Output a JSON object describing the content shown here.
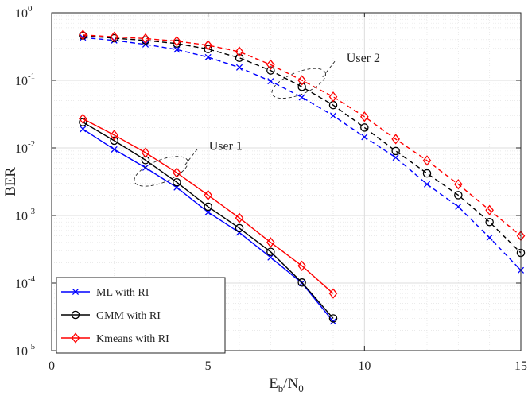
{
  "chart_data": {
    "type": "line",
    "title": "",
    "xlabel": {
      "main": "E",
      "sub1": "b",
      "mid": "/N",
      "sub2": "0"
    },
    "ylabel": "BER",
    "xlim": [
      0,
      15
    ],
    "ylim": [
      1e-05,
      1
    ],
    "yscale": "log",
    "grid": true,
    "minor_grid": true,
    "x_ticks": [
      0,
      5,
      10,
      15
    ],
    "x_tick_labels": [
      "0",
      "5",
      "10",
      "15"
    ],
    "y_ticks": [
      1e-05,
      0.0001,
      0.001,
      0.01,
      0.1,
      1
    ],
    "y_tick_labels": [
      {
        "base": "10",
        "exp": "-5"
      },
      {
        "base": "10",
        "exp": "-4"
      },
      {
        "base": "10",
        "exp": "-3"
      },
      {
        "base": "10",
        "exp": "-2"
      },
      {
        "base": "10",
        "exp": "-1"
      },
      {
        "base": "10",
        "exp": "0"
      }
    ],
    "legend_position": "bottom-left",
    "legend": [
      {
        "label": "ML with RI",
        "color": "#0000ff",
        "marker": "x"
      },
      {
        "label": "GMM with RI",
        "color": "#000000",
        "marker": "o"
      },
      {
        "label": "Kmeans with RI",
        "color": "#ff0000",
        "marker": "diamond"
      }
    ],
    "series": [
      {
        "name": "ML with RI (User 1)",
        "legend_index": 0,
        "color": "#0000ff",
        "marker": "x",
        "dash": "solid",
        "x": [
          1,
          2,
          3,
          4,
          5,
          6,
          7,
          8,
          9
        ],
        "y": [
          0.019,
          0.0095,
          0.0051,
          0.0026,
          0.00112,
          0.00056,
          0.00024,
          0.0001,
          2.7e-05
        ]
      },
      {
        "name": "GMM with RI (User 1)",
        "legend_index": 1,
        "color": "#000000",
        "marker": "o",
        "dash": "solid",
        "x": [
          1,
          2,
          3,
          4,
          5,
          6,
          7,
          8,
          9
        ],
        "y": [
          0.024,
          0.0128,
          0.0066,
          0.0031,
          0.00135,
          0.00065,
          0.00029,
          0.000102,
          3e-05
        ]
      },
      {
        "name": "Kmeans with RI (User 1)",
        "legend_index": 2,
        "color": "#ff0000",
        "marker": "diamond",
        "dash": "solid",
        "x": [
          1,
          2,
          3,
          4,
          5,
          6,
          7,
          8,
          9
        ],
        "y": [
          0.027,
          0.0155,
          0.0085,
          0.0043,
          0.002,
          0.00092,
          0.0004,
          0.00018,
          7e-05
        ]
      },
      {
        "name": "ML with RI (User 2)",
        "legend_index": 0,
        "color": "#0000ff",
        "marker": "x",
        "dash": "dashed",
        "x": [
          1,
          2,
          3,
          4,
          5,
          6,
          7,
          8,
          9,
          10,
          11,
          12,
          13,
          14,
          15
        ],
        "y": [
          0.43,
          0.39,
          0.34,
          0.285,
          0.22,
          0.155,
          0.097,
          0.056,
          0.03,
          0.0145,
          0.0072,
          0.0029,
          0.00135,
          0.00047,
          0.000155
        ]
      },
      {
        "name": "GMM with RI (User 2)",
        "legend_index": 1,
        "color": "#000000",
        "marker": "o",
        "dash": "dashed",
        "x": [
          1,
          2,
          3,
          4,
          5,
          6,
          7,
          8,
          9,
          10,
          11,
          12,
          13,
          14,
          15
        ],
        "y": [
          0.46,
          0.42,
          0.39,
          0.35,
          0.29,
          0.215,
          0.14,
          0.08,
          0.043,
          0.02,
          0.009,
          0.0042,
          0.002,
          0.0008,
          0.00028
        ]
      },
      {
        "name": "Kmeans with RI (User 2)",
        "legend_index": 2,
        "color": "#ff0000",
        "marker": "diamond",
        "dash": "dashed",
        "x": [
          1,
          2,
          3,
          4,
          5,
          6,
          7,
          8,
          9,
          10,
          11,
          12,
          13,
          14,
          15
        ],
        "y": [
          0.47,
          0.44,
          0.415,
          0.38,
          0.33,
          0.265,
          0.17,
          0.1,
          0.057,
          0.029,
          0.0135,
          0.0065,
          0.0029,
          0.0012,
          0.0005
        ]
      }
    ],
    "annotations": [
      {
        "id": "user1",
        "text": "User 1",
        "ellipse_center": [
          3.5,
          0.0045
        ],
        "text_anchor_point": [
          6.1,
          0.011
        ]
      },
      {
        "id": "user2",
        "text": "User 2",
        "ellipse_center": [
          7.9,
          0.09
        ],
        "text_anchor_point": [
          10.5,
          0.22
        ]
      }
    ]
  }
}
